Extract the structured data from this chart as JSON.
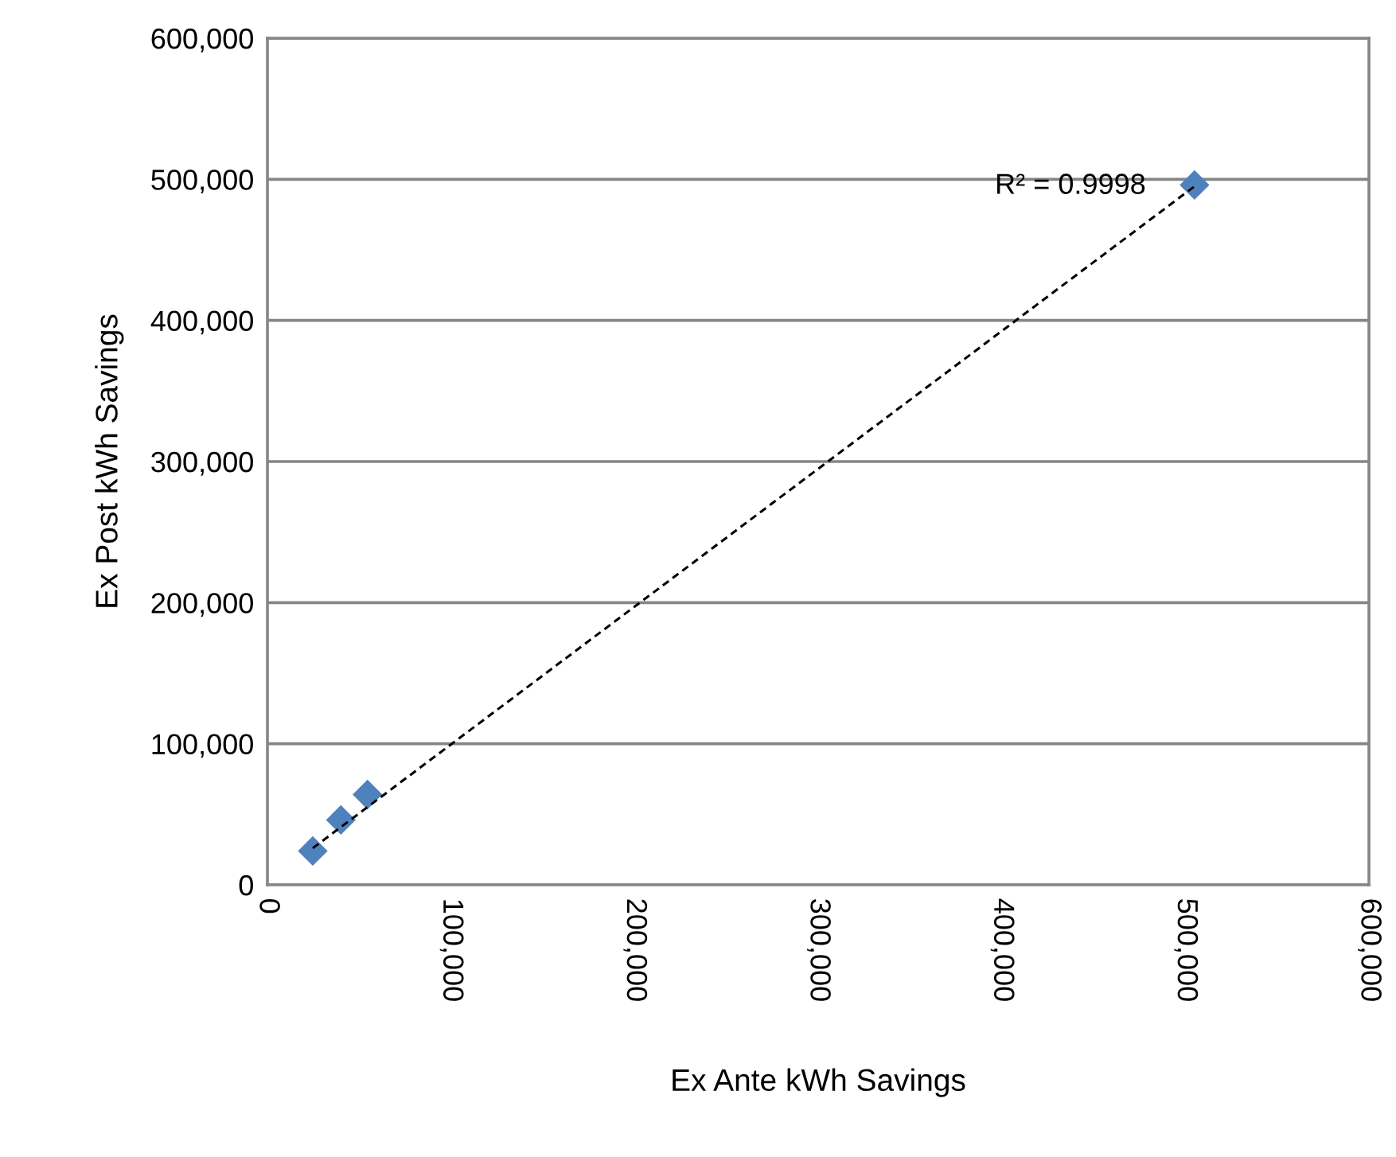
{
  "chart_data": {
    "type": "scatter",
    "xlabel": "Ex Ante kWh Savings",
    "ylabel": "Ex Post kWh Savings",
    "x": [
      24700,
      40000,
      54500,
      505000
    ],
    "series": [
      {
        "color": "#4f81bd",
        "marker": "diamond",
        "values": [
          24000,
          46000,
          64000,
          496000
        ]
      },
      {
        "type": "line",
        "color": "#000000",
        "marker": "none",
        "line_style": "dashed",
        "x": [
          24700,
          505000
        ],
        "values": [
          26000,
          495000
        ]
      }
    ],
    "xlim": [
      0,
      600000
    ],
    "xticks": [
      {
        "value": 0,
        "label": "0"
      },
      {
        "value": 100000,
        "label": "100,000"
      },
      {
        "value": 200000,
        "label": "200,000"
      },
      {
        "value": 300000,
        "label": "300,000"
      },
      {
        "value": 400000,
        "label": "400,000"
      },
      {
        "value": 500000,
        "label": "500,000"
      },
      {
        "value": 600000,
        "label": "600,000"
      }
    ],
    "ylim": [
      0,
      600000
    ],
    "yticks": [
      {
        "value": 0,
        "label": "0"
      },
      {
        "value": 100000,
        "label": "100,000"
      },
      {
        "value": 200000,
        "label": "200,000"
      },
      {
        "value": 300000,
        "label": "300,000"
      },
      {
        "value": 400000,
        "label": "400,000"
      },
      {
        "value": 500000,
        "label": "500,000"
      },
      {
        "value": 600000,
        "label": "600,000"
      }
    ],
    "grid": "y",
    "annotations": [
      {
        "text": "R² = 0.9998",
        "x": 505000,
        "y": 495000
      }
    ]
  }
}
